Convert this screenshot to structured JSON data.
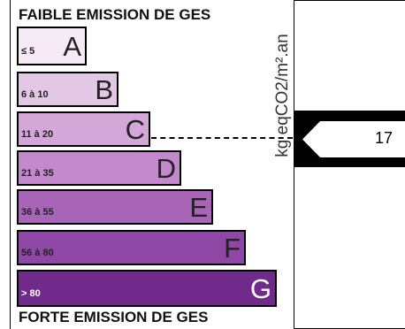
{
  "header": {
    "top_label": "FAIBLE EMISSION DE GES",
    "bottom_label": "FORTE EMISSION DE GES"
  },
  "unit": "kg eqCO2/m².an",
  "classes": [
    {
      "range": "≤ 5",
      "letter": "A",
      "color": "#f5eaf6",
      "text_color": "#222222"
    },
    {
      "range": "6 à 10",
      "letter": "B",
      "color": "#e3c8e5",
      "text_color": "#222222"
    },
    {
      "range": "11 à 20",
      "letter": "C",
      "color": "#d3a7d7",
      "text_color": "#222222"
    },
    {
      "range": "21 à 35",
      "letter": "D",
      "color": "#c488cd",
      "text_color": "#222222"
    },
    {
      "range": "36 à 55",
      "letter": "E",
      "color": "#a865b8",
      "text_color": "#222222"
    },
    {
      "range": "56 à 80",
      "letter": "F",
      "color": "#8e47a5",
      "text_color": "#222222"
    },
    {
      "range": "> 80",
      "letter": "G",
      "color": "#6f2a8b",
      "text_color": "#ffffff"
    }
  ],
  "result": {
    "value": "17",
    "class": "C"
  }
}
